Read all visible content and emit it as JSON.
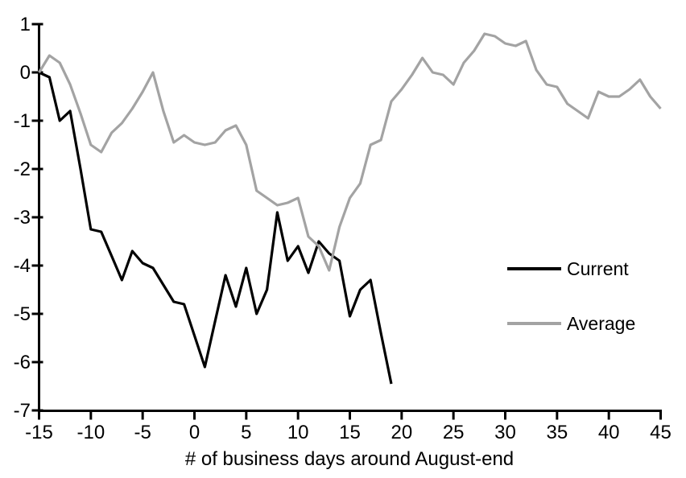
{
  "chart_data": {
    "type": "line",
    "title": "",
    "xlabel": "# of business days around August-end",
    "ylabel": "",
    "xlim": [
      -15,
      45
    ],
    "ylim": [
      -7,
      1
    ],
    "grid": false,
    "axis_color": "#000000",
    "background_color": "#ffffff",
    "x_ticks": [
      -15,
      -10,
      -5,
      0,
      5,
      10,
      15,
      20,
      25,
      30,
      35,
      40,
      45
    ],
    "y_ticks": [
      1,
      0,
      -1,
      -2,
      -3,
      -4,
      -5,
      -6,
      -7
    ],
    "legend_position": "inside-right-middle",
    "series": [
      {
        "name": "Current",
        "color": "#000000",
        "x": [
          -15,
          -14,
          -13,
          -12,
          -11,
          -10,
          -9,
          -8,
          -7,
          -6,
          -5,
          -4,
          -3,
          -2,
          -1,
          0,
          1,
          2,
          3,
          4,
          5,
          6,
          7,
          8,
          9,
          10,
          11,
          12,
          13,
          14,
          15,
          16,
          17,
          18,
          19
        ],
        "values": [
          0,
          -0.1,
          -1.0,
          -0.8,
          -2.0,
          -3.25,
          -3.3,
          -3.8,
          -4.3,
          -3.7,
          -3.95,
          -4.05,
          -4.4,
          -4.75,
          -4.8,
          -5.45,
          -6.1,
          -5.15,
          -4.2,
          -4.85,
          -4.05,
          -5.0,
          -4.5,
          -2.9,
          -3.9,
          -3.6,
          -4.15,
          -3.5,
          -3.75,
          -3.9,
          -5.05,
          -4.5,
          -4.3,
          -5.4,
          -6.45
        ]
      },
      {
        "name": "Average",
        "color": "#A3A3A3",
        "x": [
          -15,
          -14,
          -13,
          -12,
          -11,
          -10,
          -9,
          -8,
          -7,
          -6,
          -5,
          -4,
          -3,
          -2,
          -1,
          0,
          1,
          2,
          3,
          4,
          5,
          6,
          7,
          8,
          9,
          10,
          11,
          12,
          13,
          14,
          15,
          16,
          17,
          18,
          19,
          20,
          21,
          22,
          23,
          24,
          25,
          26,
          27,
          28,
          29,
          30,
          31,
          32,
          33,
          34,
          35,
          36,
          37,
          38,
          39,
          40,
          41,
          42,
          43,
          44,
          45
        ],
        "values": [
          0,
          0.35,
          0.2,
          -0.25,
          -0.85,
          -1.5,
          -1.65,
          -1.25,
          -1.05,
          -0.75,
          -0.4,
          0.0,
          -0.8,
          -1.45,
          -1.3,
          -1.45,
          -1.5,
          -1.45,
          -1.2,
          -1.1,
          -1.5,
          -2.45,
          -2.6,
          -2.75,
          -2.7,
          -2.6,
          -3.4,
          -3.6,
          -4.1,
          -3.2,
          -2.6,
          -2.3,
          -1.5,
          -1.4,
          -0.6,
          -0.35,
          -0.05,
          0.3,
          0.0,
          -0.05,
          -0.25,
          0.2,
          0.45,
          0.8,
          0.75,
          0.6,
          0.55,
          0.65,
          0.05,
          -0.25,
          -0.3,
          -0.65,
          -0.8,
          -0.95,
          -0.4,
          -0.5,
          -0.5,
          -0.35,
          -0.15,
          -0.5,
          -0.75
        ]
      }
    ]
  }
}
